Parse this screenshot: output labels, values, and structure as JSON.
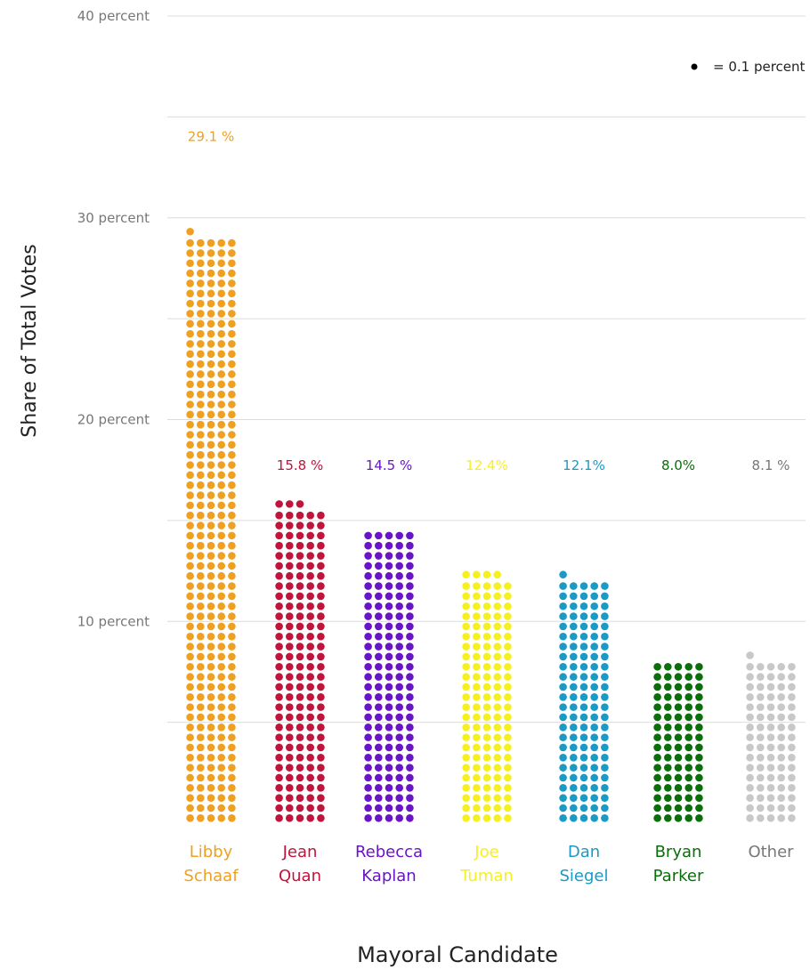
{
  "chart_data": {
    "type": "bar",
    "style": "dot-matrix",
    "xlabel": "Mayoral Candidate",
    "ylabel": "Share of Total Votes",
    "ylim": [
      0,
      40
    ],
    "yticks": [
      {
        "value": 10,
        "label": "10 percent"
      },
      {
        "value": 20,
        "label": "20 percent"
      },
      {
        "value": 30,
        "label": "30 percent"
      },
      {
        "value": 40,
        "label": "40 percent"
      }
    ],
    "grid": true,
    "legend": {
      "symbol": "dot",
      "text": "= 0.1 percent",
      "position": "top-right"
    },
    "categories": [
      {
        "line1": "Libby",
        "line2": "Schaaf",
        "value": 29.1,
        "value_label": "29.1 %",
        "color": "#f0a020"
      },
      {
        "line1": "Jean",
        "line2": "Quan",
        "value": 15.8,
        "value_label": "15.8 %",
        "color": "#c0143c"
      },
      {
        "line1": "Rebecca",
        "line2": "Kaplan",
        "value": 14.5,
        "value_label": "14.5 %",
        "color": "#6a14c8"
      },
      {
        "line1": "Joe",
        "line2": "Tuman",
        "value": 12.4,
        "value_label": "12.4%",
        "color": "#f7f020"
      },
      {
        "line1": "Dan",
        "line2": "Siegel",
        "value": 12.1,
        "value_label": "12.1%",
        "color": "#1a9ac4"
      },
      {
        "line1": "Bryan",
        "line2": "Parker",
        "value": 8.0,
        "value_label": "8.0%",
        "color": "#0a6e0a"
      },
      {
        "line1": "Other",
        "line2": "",
        "value": 8.1,
        "value_label": "8.1 %",
        "color": "#c8c8c8",
        "text_color": "#777777"
      }
    ]
  }
}
